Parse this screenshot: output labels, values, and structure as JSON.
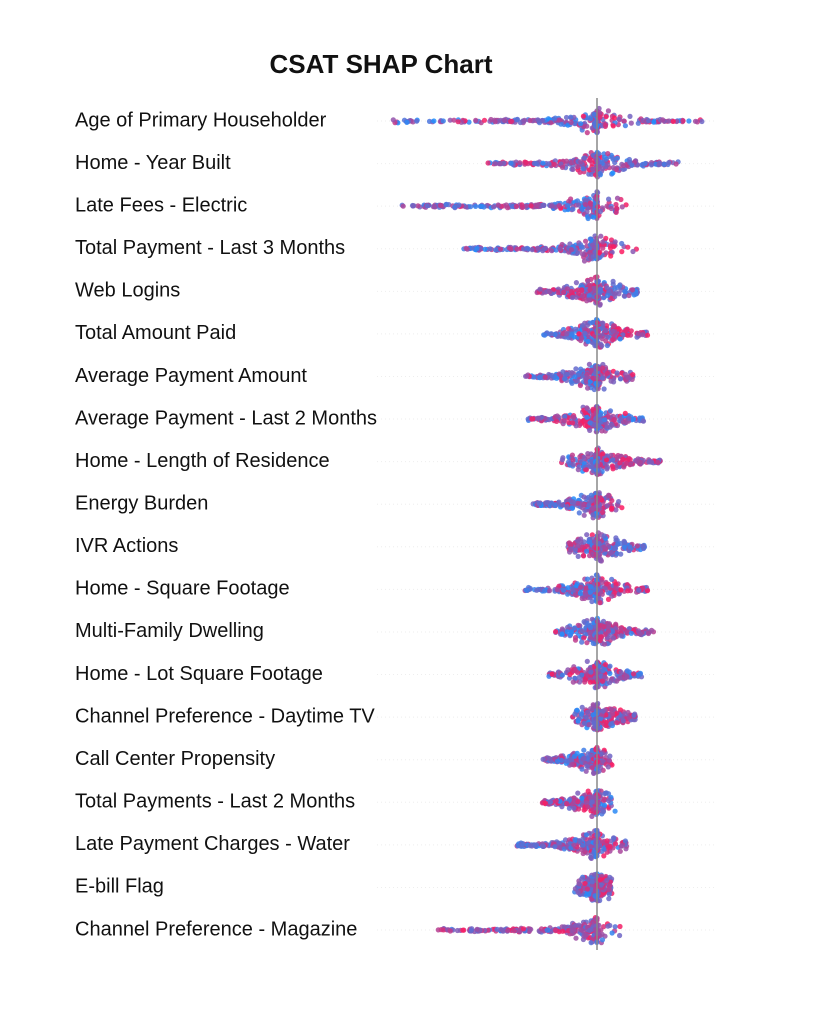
{
  "chart_data": {
    "type": "beeswarm",
    "title": "CSAT SHAP Chart",
    "xlim": [
      -1.1,
      0.6
    ],
    "high_color": "#ff1a5e",
    "low_color": "#1e8fff",
    "series": [
      {
        "name": "Age of Primary Householder",
        "min": -1.02,
        "max": 0.545
      },
      {
        "name": "Home - Year Built",
        "min": -0.55,
        "max": 0.415
      },
      {
        "name": "Late Fees - Electric",
        "min": -0.975,
        "max": 0.15
      },
      {
        "name": "Total Payment - Last 3 Months",
        "min": -0.69,
        "max": 0.215
      },
      {
        "name": "Web Logins",
        "min": -0.3,
        "max": 0.205
      },
      {
        "name": "Total Amount Paid",
        "min": -0.27,
        "max": 0.255
      },
      {
        "name": "Average Payment Amount",
        "min": -0.36,
        "max": 0.195
      },
      {
        "name": "Average Payment - Last 2 Months",
        "min": -0.35,
        "max": 0.235
      },
      {
        "name": "Home - Length of Residence",
        "min": -0.185,
        "max": 0.325
      },
      {
        "name": "Energy Burden",
        "min": -0.32,
        "max": 0.125
      },
      {
        "name": "IVR Actions",
        "min": -0.15,
        "max": 0.24
      },
      {
        "name": "Home - Square Footage",
        "min": -0.36,
        "max": 0.255
      },
      {
        "name": "Multi-Family Dwelling",
        "min": -0.22,
        "max": 0.285
      },
      {
        "name": "Home - Lot Square Footage",
        "min": -0.245,
        "max": 0.225
      },
      {
        "name": "Channel Preference - Daytime TV",
        "min": -0.13,
        "max": 0.195
      },
      {
        "name": "Call Center Propensity",
        "min": -0.27,
        "max": 0.075
      },
      {
        "name": "Total Payments - Last 2 Months",
        "min": -0.28,
        "max": 0.1
      },
      {
        "name": "Late Payment Charges - Water",
        "min": -0.4,
        "max": 0.15
      },
      {
        "name": "E-bill Flag",
        "min": -0.115,
        "max": 0.075
      },
      {
        "name": "Channel Preference - Magazine",
        "min": -0.8,
        "max": 0.125
      }
    ]
  }
}
